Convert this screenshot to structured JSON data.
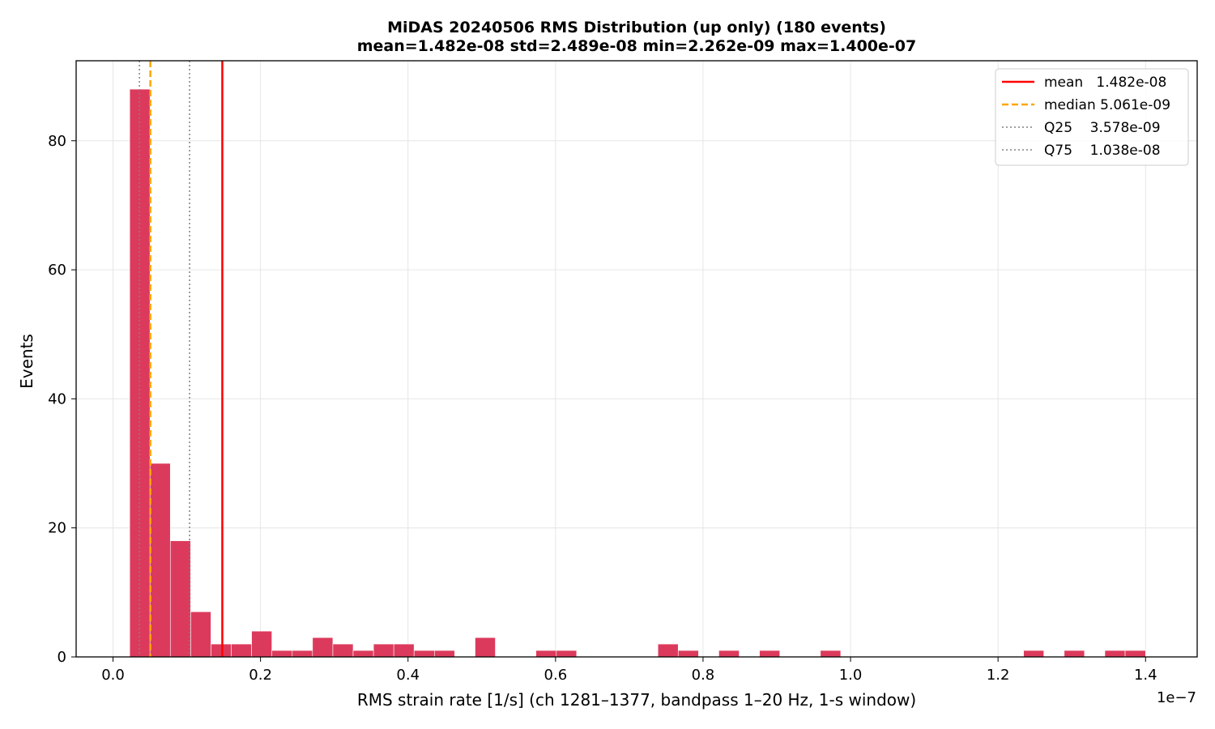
{
  "chart_data": {
    "type": "bar",
    "title_line1": "MiDAS 20240506  RMS Distribution  (up only)  (180 events)",
    "title_line2": "mean=1.482e-08  std=2.489e-08  min=2.262e-09  max=1.400e-07",
    "xlabel": "RMS strain rate [1/s]  (ch 1281–1377, bandpass 1–20 Hz, 1-s window)",
    "ylabel": "Events",
    "x_offset_label": "1e−7",
    "x_scale": 1e-07,
    "xlim": [
      -0.05,
      1.47
    ],
    "ylim": [
      0,
      92.4
    ],
    "grid": true,
    "bar_color": "#dc3a5c",
    "x_ticks": [
      0.0,
      0.2,
      0.4,
      0.6,
      0.8,
      1.0,
      1.2,
      1.4
    ],
    "x_tick_labels": [
      "0.0",
      "0.2",
      "0.4",
      "0.6",
      "0.8",
      "1.0",
      "1.2",
      "1.4"
    ],
    "y_ticks": [
      0,
      20,
      40,
      60,
      80
    ],
    "y_tick_labels": [
      "0",
      "20",
      "40",
      "60",
      "80"
    ],
    "bin_edges": [
      0.0226,
      0.0502,
      0.0777,
      0.1053,
      0.1328,
      0.1603,
      0.1879,
      0.2154,
      0.243,
      0.2705,
      0.2981,
      0.3256,
      0.3532,
      0.3807,
      0.4082,
      0.4358,
      0.4633,
      0.4909,
      0.5184,
      0.546,
      0.5735,
      0.6011,
      0.6286,
      0.6562,
      0.6837,
      0.7112,
      0.7388,
      0.7663,
      0.7939,
      0.8214,
      0.849,
      0.8765,
      0.9041,
      0.9316,
      0.9591,
      0.9867,
      1.0142,
      1.0418,
      1.0693,
      1.0969,
      1.1244,
      1.152,
      1.1795,
      1.207,
      1.2346,
      1.2621,
      1.2897,
      1.3172,
      1.3448,
      1.3723,
      1.4
    ],
    "counts": [
      88,
      30,
      18,
      7,
      2,
      2,
      4,
      1,
      1,
      3,
      2,
      1,
      2,
      2,
      1,
      1,
      0,
      3,
      0,
      0,
      1,
      1,
      0,
      0,
      0,
      0,
      2,
      1,
      0,
      1,
      0,
      1,
      0,
      0,
      1,
      0,
      0,
      0,
      0,
      0,
      0,
      0,
      0,
      0,
      1,
      0,
      1,
      0,
      1,
      1
    ],
    "reference_lines": [
      {
        "name": "mean",
        "label": "mean   1.482e-08",
        "value": 0.1482,
        "color": "#ff0000",
        "style": "solid"
      },
      {
        "name": "median",
        "label": "median 5.061e-09",
        "value": 0.05061,
        "color": "#ffa500",
        "style": "dashed"
      },
      {
        "name": "q25",
        "label": "Q25    3.578e-09",
        "value": 0.03578,
        "color": "#808080",
        "style": "dotted"
      },
      {
        "name": "q75",
        "label": "Q75    1.038e-08",
        "value": 0.1038,
        "color": "#808080",
        "style": "dotted"
      }
    ],
    "legend_position": "top-right"
  }
}
